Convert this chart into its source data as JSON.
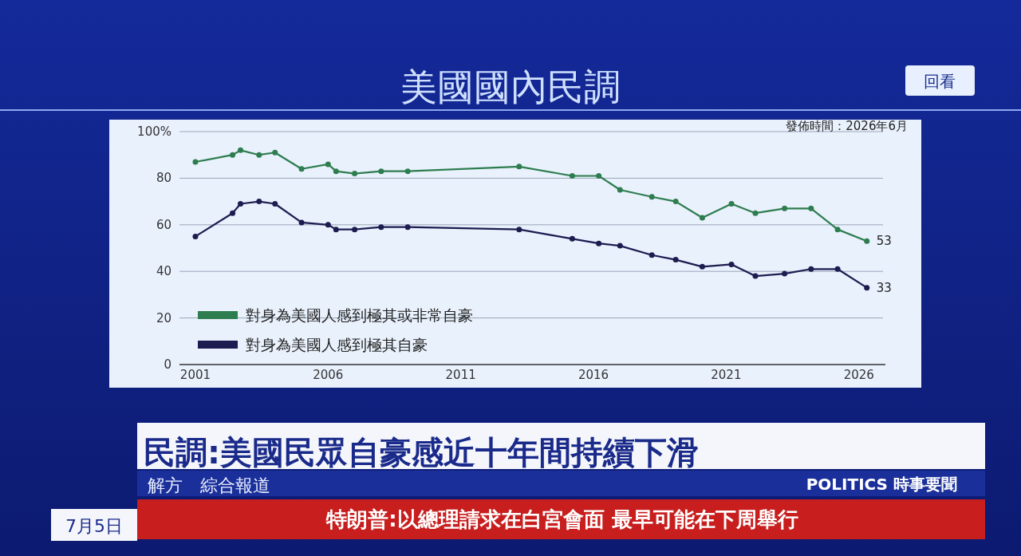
{
  "chart_data": {
    "type": "line",
    "title": "美國國內民調",
    "x": [
      2001,
      2002.4,
      2002.7,
      2003.4,
      2004,
      2005,
      2006,
      2006.3,
      2007,
      2008,
      2009,
      2013.2,
      2015.2,
      2016.2,
      2017,
      2018.2,
      2019.1,
      2020.1,
      2021.2,
      2022.1,
      2023.2,
      2024.2,
      2025.2,
      2026.3
    ],
    "xlim": [
      2000.4,
      2027
    ],
    "xticks": [
      2001,
      2006,
      2011,
      2016,
      2021,
      2026
    ],
    "ylim": [
      0,
      100
    ],
    "yticks": [
      0,
      20,
      40,
      60,
      80,
      {
        "value": 100,
        "label": "100%"
      }
    ],
    "series": [
      {
        "name": "對身為美國人感到極其或非常自豪",
        "color": "#2e7d4f",
        "values": [
          87,
          90,
          92,
          90,
          91,
          84,
          86,
          83,
          82,
          83,
          83,
          85,
          81,
          81,
          75,
          72,
          70,
          63,
          69,
          65,
          67,
          67,
          58,
          53
        ],
        "value_labels": [
          null,
          null,
          null,
          null,
          null,
          null,
          null,
          null,
          null,
          null,
          null,
          null,
          null,
          null,
          null,
          null,
          null,
          null,
          null,
          null,
          null,
          null,
          null,
          "53"
        ]
      },
      {
        "name": "對身為美國人感到極其自豪",
        "color": "#1c1c50",
        "values": [
          55,
          65,
          69,
          70,
          69,
          61,
          60,
          58,
          58,
          59,
          59,
          58,
          54,
          52,
          51,
          47,
          45,
          42,
          43,
          38,
          39,
          41,
          41,
          33
        ],
        "value_labels": [
          null,
          null,
          null,
          null,
          null,
          null,
          null,
          null,
          null,
          null,
          null,
          null,
          null,
          null,
          null,
          null,
          null,
          null,
          null,
          null,
          null,
          null,
          null,
          "33"
        ]
      }
    ],
    "grid": "y",
    "legend": "bottom left",
    "marker": "circle",
    "line_style": "solid",
    "annotations": [
      "發佈時間：2026年6月",
      "回看",
      "民調:美國民眾自豪感近十年間持續下滑",
      "解方　綜合報道",
      "POLITICS 時事要聞",
      "7月5日",
      "特朗普:以總理請求在白宮會面 最早可能在下周舉行"
    ]
  }
}
